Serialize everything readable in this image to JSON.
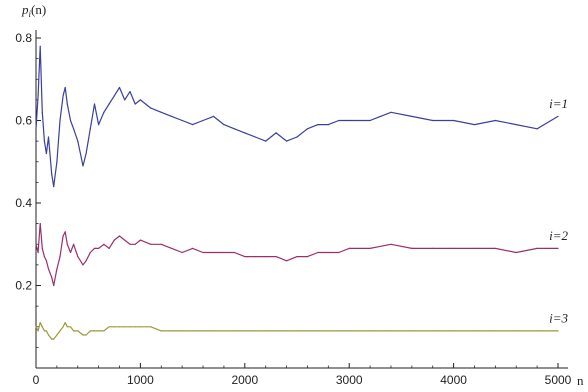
{
  "chart_data": {
    "type": "line",
    "title": "",
    "xlabel": "n",
    "ylabel": "p_i(n)",
    "ylabel_main": "p",
    "ylabel_sub": "i",
    "ylabel_paren": "(n)",
    "xlim": [
      0,
      5000
    ],
    "ylim": [
      0,
      0.8
    ],
    "x_ticks": [
      0,
      1000,
      2000,
      3000,
      4000,
      5000
    ],
    "x_tick_labels": [
      "0",
      "1000",
      "2000",
      "3000",
      "4000",
      "5000"
    ],
    "y_ticks": [
      0.2,
      0.4,
      0.6,
      0.8
    ],
    "y_tick_labels": [
      "0.2",
      "0.4",
      "0.6",
      "0.8"
    ],
    "grid": false,
    "series": [
      {
        "name": "i=1",
        "color": "#3a3fa0",
        "x": [
          0,
          20,
          40,
          60,
          80,
          100,
          120,
          150,
          170,
          200,
          230,
          260,
          280,
          300,
          330,
          360,
          400,
          450,
          480,
          520,
          560,
          600,
          650,
          700,
          750,
          800,
          850,
          900,
          950,
          1000,
          1100,
          1200,
          1300,
          1400,
          1500,
          1600,
          1700,
          1800,
          1900,
          2000,
          2100,
          2200,
          2300,
          2400,
          2500,
          2600,
          2700,
          2800,
          2900,
          3000,
          3200,
          3400,
          3600,
          3800,
          4000,
          4200,
          4400,
          4600,
          4800,
          5000
        ],
        "values": [
          0.58,
          0.66,
          0.78,
          0.62,
          0.55,
          0.52,
          0.56,
          0.47,
          0.44,
          0.5,
          0.6,
          0.66,
          0.68,
          0.64,
          0.6,
          0.58,
          0.55,
          0.49,
          0.52,
          0.58,
          0.64,
          0.59,
          0.62,
          0.64,
          0.66,
          0.68,
          0.65,
          0.67,
          0.64,
          0.65,
          0.63,
          0.62,
          0.61,
          0.6,
          0.59,
          0.6,
          0.61,
          0.59,
          0.58,
          0.57,
          0.56,
          0.55,
          0.57,
          0.55,
          0.56,
          0.58,
          0.59,
          0.59,
          0.6,
          0.6,
          0.6,
          0.62,
          0.61,
          0.6,
          0.6,
          0.59,
          0.6,
          0.59,
          0.58,
          0.61
        ]
      },
      {
        "name": "i=2",
        "color": "#9c2f6c",
        "x": [
          0,
          20,
          40,
          60,
          80,
          100,
          120,
          150,
          170,
          200,
          230,
          260,
          280,
          300,
          330,
          360,
          400,
          450,
          480,
          520,
          560,
          600,
          650,
          700,
          750,
          800,
          850,
          900,
          950,
          1000,
          1100,
          1200,
          1300,
          1400,
          1500,
          1600,
          1700,
          1800,
          1900,
          2000,
          2100,
          2200,
          2300,
          2400,
          2500,
          2600,
          2700,
          2800,
          2900,
          3000,
          3200,
          3400,
          3600,
          3800,
          4000,
          4200,
          4400,
          4600,
          4800,
          5000
        ],
        "values": [
          0.3,
          0.28,
          0.35,
          0.29,
          0.27,
          0.26,
          0.24,
          0.22,
          0.2,
          0.24,
          0.27,
          0.32,
          0.33,
          0.3,
          0.28,
          0.3,
          0.27,
          0.25,
          0.26,
          0.28,
          0.29,
          0.29,
          0.3,
          0.29,
          0.31,
          0.32,
          0.31,
          0.3,
          0.3,
          0.31,
          0.3,
          0.3,
          0.29,
          0.28,
          0.29,
          0.28,
          0.28,
          0.28,
          0.28,
          0.27,
          0.27,
          0.27,
          0.27,
          0.26,
          0.27,
          0.27,
          0.28,
          0.28,
          0.28,
          0.29,
          0.29,
          0.3,
          0.29,
          0.29,
          0.29,
          0.29,
          0.29,
          0.28,
          0.29,
          0.29
        ]
      },
      {
        "name": "i=3",
        "color": "#9c9a3a",
        "x": [
          0,
          20,
          40,
          60,
          80,
          100,
          120,
          150,
          170,
          200,
          230,
          260,
          280,
          300,
          330,
          360,
          400,
          450,
          480,
          520,
          560,
          600,
          650,
          700,
          750,
          800,
          850,
          900,
          950,
          1000,
          1100,
          1200,
          1300,
          1400,
          1500,
          1600,
          1700,
          1800,
          1900,
          2000,
          2100,
          2200,
          2300,
          2400,
          2500,
          2600,
          2700,
          2800,
          2900,
          3000,
          3200,
          3400,
          3600,
          3800,
          4000,
          4200,
          4400,
          4600,
          4800,
          5000
        ],
        "values": [
          0.1,
          0.09,
          0.11,
          0.1,
          0.09,
          0.09,
          0.08,
          0.07,
          0.07,
          0.08,
          0.09,
          0.1,
          0.11,
          0.1,
          0.1,
          0.09,
          0.09,
          0.08,
          0.08,
          0.09,
          0.09,
          0.09,
          0.09,
          0.1,
          0.1,
          0.1,
          0.1,
          0.1,
          0.1,
          0.1,
          0.1,
          0.09,
          0.09,
          0.09,
          0.09,
          0.09,
          0.09,
          0.09,
          0.09,
          0.09,
          0.09,
          0.09,
          0.09,
          0.09,
          0.09,
          0.09,
          0.09,
          0.09,
          0.09,
          0.09,
          0.09,
          0.09,
          0.09,
          0.09,
          0.09,
          0.09,
          0.09,
          0.09,
          0.09,
          0.09
        ]
      }
    ],
    "series_labels": [
      {
        "text": "i=1",
        "at_value": 0.64
      },
      {
        "text": "i=2",
        "at_value": 0.32
      },
      {
        "text": "i=3",
        "at_value": 0.12
      }
    ]
  }
}
